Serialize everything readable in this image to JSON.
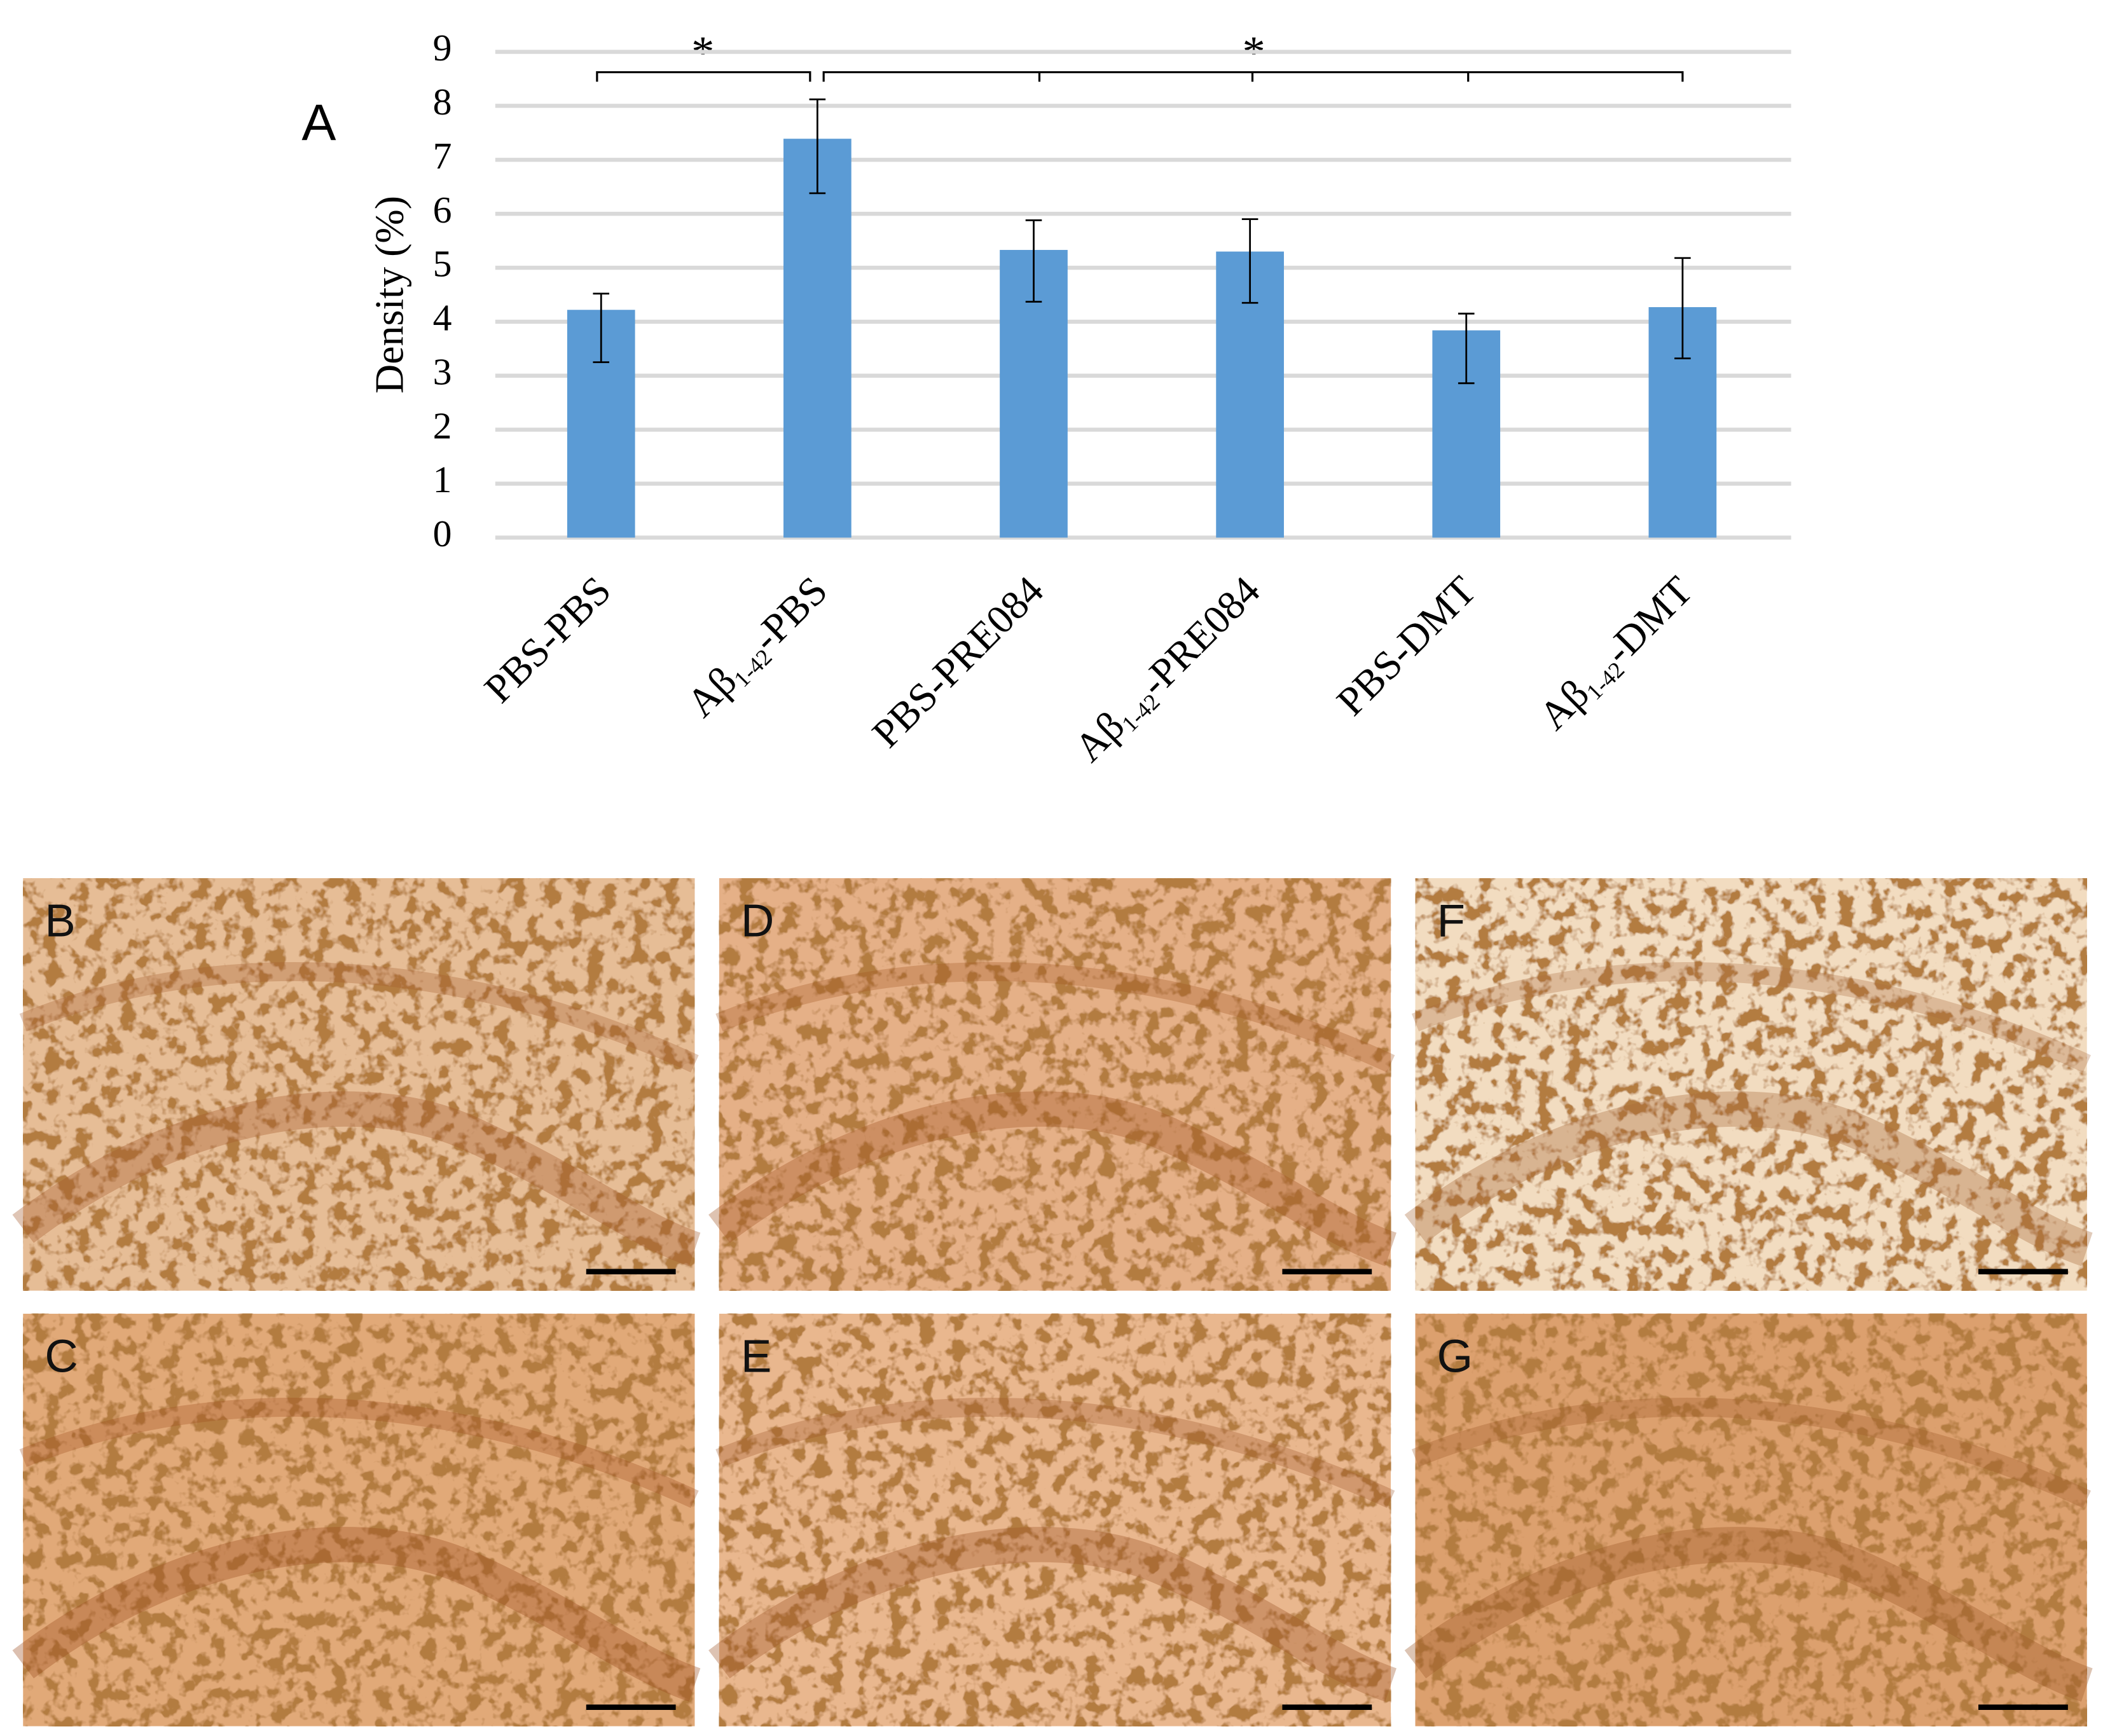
{
  "chart_data": {
    "type": "bar",
    "panel_label": "A",
    "ylabel": "Density (%)",
    "categories": [
      "PBS-PBS",
      "Aβ1-42-PBS",
      "PBS-PRE084",
      "Aβ1-42-PRE084",
      "PBS-DMT",
      "Aβ1-42-DMT"
    ],
    "values": [
      4.22,
      7.39,
      5.33,
      5.3,
      3.84,
      4.27
    ],
    "errors_upper": [
      0.3,
      0.73,
      0.55,
      0.6,
      0.31,
      0.91
    ],
    "errors_lower": [
      0.97,
      1.01,
      0.96,
      0.95,
      0.98,
      0.95
    ],
    "color": "#5b9bd5",
    "ylim": [
      0,
      9
    ],
    "yticks": [
      0,
      1,
      2,
      3,
      4,
      5,
      6,
      7,
      8,
      9
    ],
    "grid": true,
    "annotations": [
      "*",
      "*"
    ]
  },
  "panels": [
    "B",
    "C",
    "D",
    "E",
    "F",
    "G"
  ]
}
